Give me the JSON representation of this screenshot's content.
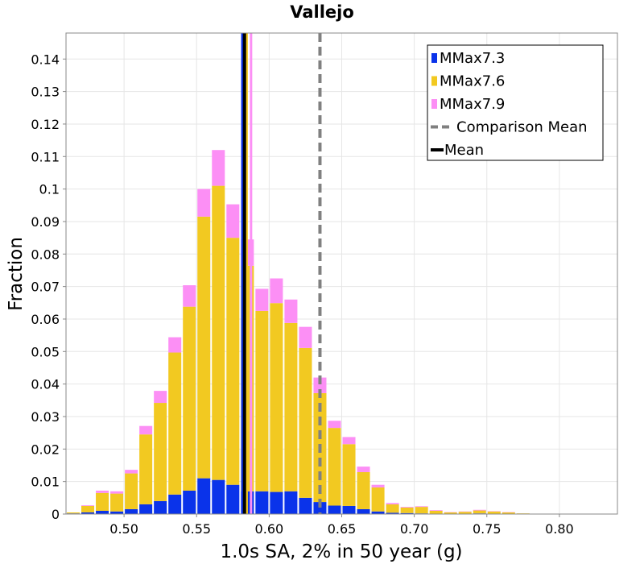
{
  "chart_data": {
    "type": "bar",
    "stacked": true,
    "title": "Vallejo",
    "xlabel": "1.0s SA, 2% in 50 year (g)",
    "ylabel": "Fraction",
    "xlim": [
      0.46,
      0.84
    ],
    "ylim": [
      0,
      0.148
    ],
    "grid": true,
    "legend_position": "top-right",
    "bin_width": 0.01,
    "bin_centers": [
      0.465,
      0.475,
      0.485,
      0.495,
      0.505,
      0.515,
      0.525,
      0.535,
      0.545,
      0.555,
      0.565,
      0.575,
      0.585,
      0.595,
      0.605,
      0.615,
      0.625,
      0.635,
      0.645,
      0.655,
      0.665,
      0.675,
      0.685,
      0.695,
      0.705,
      0.715,
      0.725,
      0.735,
      0.745,
      0.755,
      0.765,
      0.775
    ],
    "series": [
      {
        "name": "MMax7.3",
        "color": "#0a33ea",
        "values": [
          0.0002,
          0.0005,
          0.001,
          0.0008,
          0.0015,
          0.003,
          0.004,
          0.006,
          0.0072,
          0.011,
          0.0105,
          0.009,
          0.007,
          0.007,
          0.0068,
          0.007,
          0.005,
          0.0037,
          0.0026,
          0.0025,
          0.0015,
          0.0008,
          0.0004,
          0.0003,
          0.0002,
          0.0001,
          0.0001,
          0.0001,
          0.0002,
          0.0001,
          0.0001,
          0.0001
        ]
      },
      {
        "name": "MMax7.6",
        "color": "#f2c921",
        "values": [
          0.0003,
          0.002,
          0.0055,
          0.0055,
          0.011,
          0.0215,
          0.0302,
          0.0437,
          0.0566,
          0.0805,
          0.0905,
          0.076,
          0.0694,
          0.0555,
          0.0581,
          0.0518,
          0.0461,
          0.0335,
          0.0239,
          0.019,
          0.0114,
          0.0074,
          0.0026,
          0.0017,
          0.002,
          0.0009,
          0.0004,
          0.0006,
          0.0009,
          0.0007,
          0.0004,
          0.0001
        ]
      },
      {
        "name": "MMax7.9",
        "color": "#fc8ff5",
        "values": [
          0,
          0.0002,
          0.0007,
          0.0007,
          0.0011,
          0.0026,
          0.0037,
          0.0047,
          0.0066,
          0.0085,
          0.011,
          0.0103,
          0.0081,
          0.0068,
          0.0076,
          0.0072,
          0.0065,
          0.0048,
          0.0022,
          0.0022,
          0.0017,
          0.0008,
          0.0004,
          0.0002,
          0.0002,
          0.0002,
          0.0001,
          0.0001,
          0.0002,
          0.0001,
          0.0001,
          0
        ]
      }
    ],
    "lines": [
      {
        "name": "Comparison Mean",
        "x": 0.635,
        "style": "dashed",
        "color": "#808080"
      },
      {
        "name": "Mean",
        "x": 0.583,
        "style": "solid",
        "color": "#000000"
      }
    ],
    "reference_lines": [
      {
        "x": 0.5815,
        "color": "#0a33ea"
      },
      {
        "x": 0.5845,
        "color": "#f2c921"
      },
      {
        "x": 0.5875,
        "color": "#fc8ff5"
      }
    ],
    "xticks": [
      "0.50",
      "0.55",
      "0.60",
      "0.65",
      "0.70",
      "0.75",
      "0.80"
    ],
    "yticks": [
      "0",
      "0.01",
      "0.02",
      "0.03",
      "0.04",
      "0.05",
      "0.06",
      "0.07",
      "0.08",
      "0.09",
      "0.1",
      "0.11",
      "0.12",
      "0.13",
      "0.14"
    ]
  }
}
